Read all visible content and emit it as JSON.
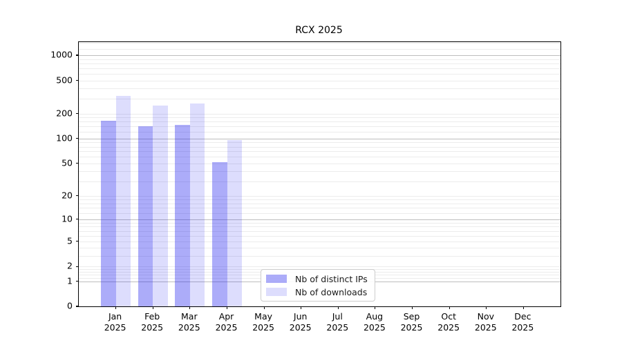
{
  "title": "RCX 2025",
  "colors": {
    "distinct_ips_bar": "rgba(17,17,238,0.35)",
    "downloads_bar": "rgba(17,17,238,0.14)",
    "major_grid": "#bdbdbd",
    "minor_grid": "#ececec"
  },
  "chart_data": {
    "type": "bar",
    "title": "RCX 2025",
    "scale": "log1p",
    "grid": true,
    "legend_position": "lower center",
    "categories": [
      "Jan",
      "Feb",
      "Mar",
      "Apr",
      "May",
      "Jun",
      "Jul",
      "Aug",
      "Sep",
      "Oct",
      "Nov",
      "Dec"
    ],
    "category_year": "2025",
    "series": [
      {
        "name": "Nb of distinct IPs",
        "color": "rgba(17,17,238,0.35)",
        "values": [
          163,
          142,
          147,
          52,
          0,
          0,
          0,
          0,
          0,
          0,
          0,
          0
        ]
      },
      {
        "name": "Nb of downloads",
        "color": "rgba(17,17,238,0.14)",
        "values": [
          324,
          250,
          266,
          97,
          0,
          0,
          0,
          0,
          0,
          0,
          0,
          0
        ]
      }
    ],
    "yticks": [
      0,
      1,
      2,
      5,
      10,
      20,
      50,
      100,
      200,
      500,
      1000
    ],
    "ylim": [
      0,
      1436
    ],
    "xlabel": "",
    "ylabel": ""
  }
}
